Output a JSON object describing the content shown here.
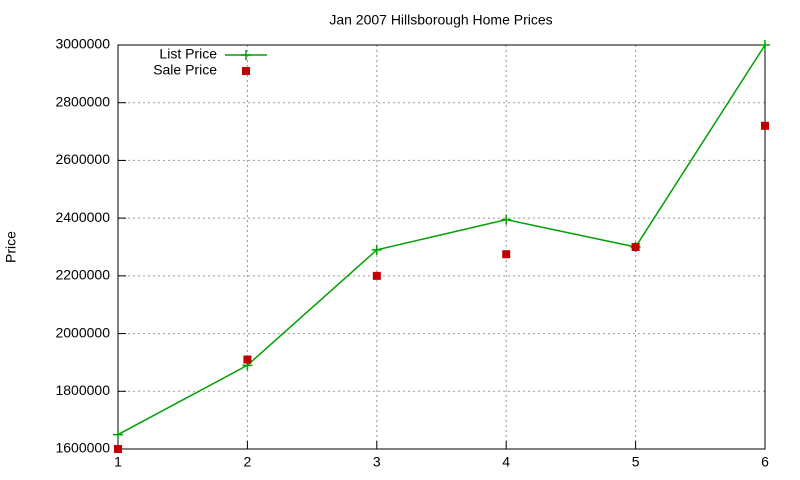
{
  "chart_data": {
    "type": "line",
    "title": "Jan 2007 Hillsborough Home Prices",
    "y_label": "Price",
    "x": [
      1,
      2,
      3,
      4,
      5,
      6
    ],
    "series": [
      {
        "name": "List Price",
        "color": "#00a000",
        "style": "linespoints",
        "values": [
          1650000,
          1890000,
          2290000,
          2395000,
          2300000,
          3000000
        ]
      },
      {
        "name": "Sale Price",
        "color": "#c00000",
        "style": "points",
        "values": [
          1600000,
          1910000,
          2200000,
          2275000,
          2300000,
          2720000
        ]
      }
    ],
    "xlim": [
      1,
      6
    ],
    "xticks": [
      1,
      2,
      3,
      4,
      5,
      6
    ],
    "ylim": [
      1600000,
      3000000
    ],
    "yticks": [
      1600000,
      1800000,
      2000000,
      2200000,
      2400000,
      2600000,
      2800000,
      3000000
    ],
    "grid": true,
    "legend": "top-left"
  }
}
